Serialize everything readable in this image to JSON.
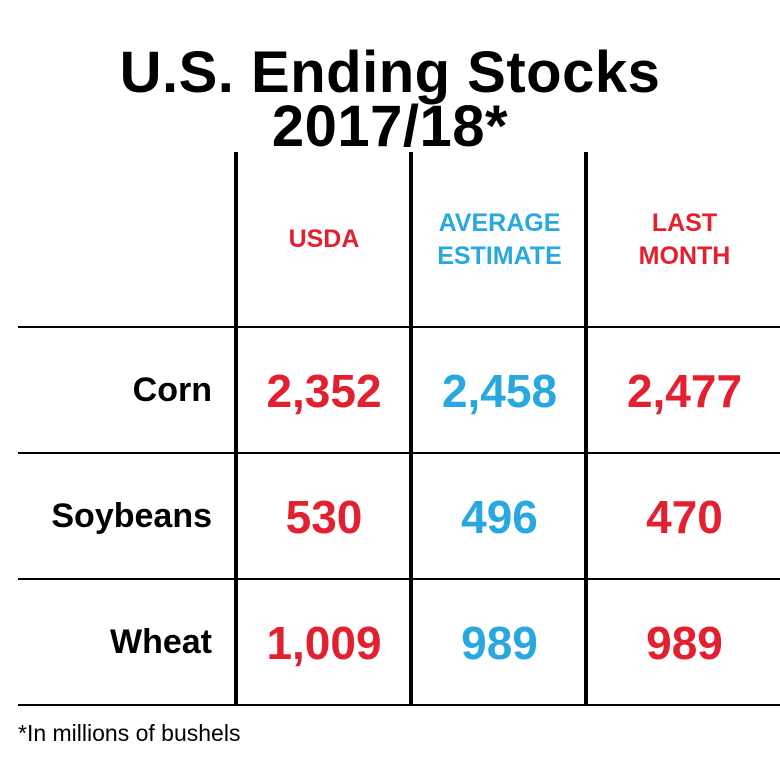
{
  "title": [
    "U.S. Ending Stocks",
    "2017/18*"
  ],
  "table": {
    "headers": [
      [
        "USDA"
      ],
      [
        "AVERAGE",
        "ESTIMATE"
      ],
      [
        "LAST",
        "MONTH"
      ]
    ],
    "rows": [
      [
        "Corn",
        "2,352",
        "2,458",
        "2,477"
      ],
      [
        "Soybeans",
        "530",
        "496",
        "470"
      ],
      [
        "Wheat",
        "1,009",
        "989",
        "989"
      ]
    ]
  },
  "footnote": "*In millions of bushels"
}
